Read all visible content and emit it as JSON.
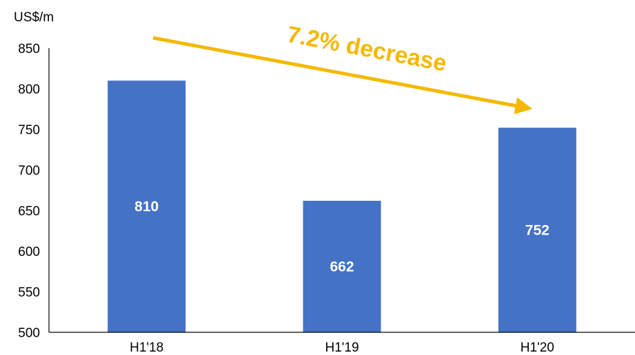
{
  "chart_data": {
    "type": "bar",
    "ylabel": "US$/m",
    "categories": [
      "H1'18",
      "H1'19",
      "H1'20"
    ],
    "values": [
      810,
      662,
      752
    ],
    "data_labels": [
      "810",
      "662",
      "752"
    ],
    "ylim": [
      500,
      850
    ],
    "yticks": [
      "500",
      "550",
      "600",
      "650",
      "700",
      "750",
      "800",
      "850"
    ],
    "grid": false,
    "annotation": "7.2% decrease",
    "colors": {
      "bar": "#4472C4",
      "annotation": "#F5B800",
      "axis": "#000000"
    }
  }
}
